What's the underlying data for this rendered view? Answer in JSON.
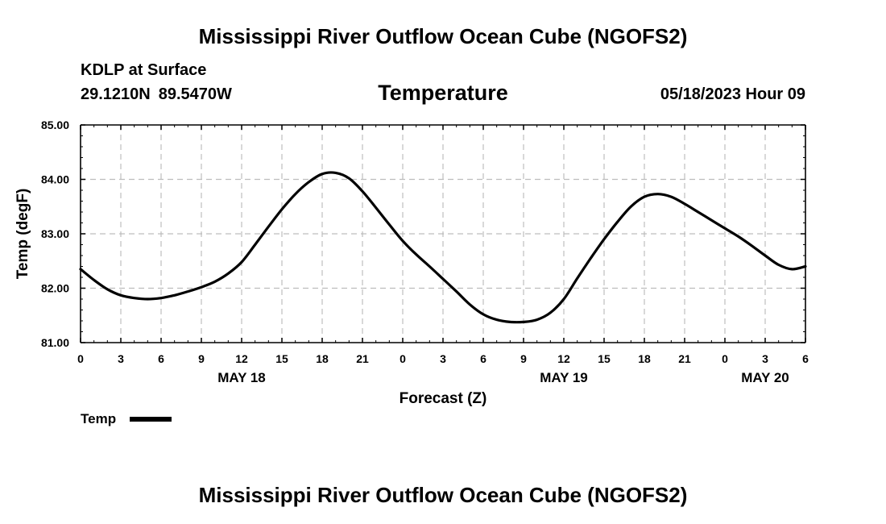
{
  "header": {
    "title": "Mississippi River Outflow Ocean Cube (NGOFS2)",
    "station": "KDLP at Surface",
    "lat": "29.1210N",
    "lon": "89.5470W",
    "variable": "Temperature",
    "valid_time": "05/18/2023 Hour 09"
  },
  "footer": {
    "title": "Mississippi River Outflow Ocean Cube (NGOFS2)"
  },
  "legend": {
    "label": "Temp",
    "line_color": "#000000"
  },
  "chart_data": {
    "type": "line",
    "title": "Temperature",
    "xlabel": "Forecast (Z)",
    "ylabel": "Temp (degF)",
    "x_unit": "hours from 00Z May 18",
    "xlim": [
      0,
      54
    ],
    "ylim": [
      81.0,
      85.0
    ],
    "y_ticks": [
      "81.00",
      "82.00",
      "83.00",
      "84.00",
      "85.00"
    ],
    "x_ticks": [
      {
        "hour": 0,
        "label": "0"
      },
      {
        "hour": 3,
        "label": "3"
      },
      {
        "hour": 6,
        "label": "6"
      },
      {
        "hour": 9,
        "label": "9"
      },
      {
        "hour": 12,
        "label": "12"
      },
      {
        "hour": 15,
        "label": "15"
      },
      {
        "hour": 18,
        "label": "18"
      },
      {
        "hour": 21,
        "label": "21"
      },
      {
        "hour": 24,
        "label": "0"
      },
      {
        "hour": 27,
        "label": "3"
      },
      {
        "hour": 30,
        "label": "6"
      },
      {
        "hour": 33,
        "label": "9"
      },
      {
        "hour": 36,
        "label": "12"
      },
      {
        "hour": 39,
        "label": "15"
      },
      {
        "hour": 42,
        "label": "18"
      },
      {
        "hour": 45,
        "label": "21"
      },
      {
        "hour": 48,
        "label": "0"
      },
      {
        "hour": 51,
        "label": "3"
      },
      {
        "hour": 54,
        "label": "6"
      }
    ],
    "date_labels": [
      {
        "hour": 12,
        "label": "MAY 18"
      },
      {
        "hour": 36,
        "label": "MAY 19"
      },
      {
        "hour": 51,
        "label": "MAY 20"
      }
    ],
    "grid": true,
    "series": [
      {
        "name": "Temp",
        "color": "#000000",
        "x": [
          0,
          1,
          2,
          3,
          4,
          5,
          6,
          7,
          8,
          9,
          10,
          11,
          12,
          13,
          14,
          15,
          16,
          17,
          18,
          19,
          20,
          21,
          22,
          23,
          24,
          25,
          26,
          27,
          28,
          29,
          30,
          31,
          32,
          33,
          34,
          35,
          36,
          37,
          38,
          39,
          40,
          41,
          42,
          43,
          44,
          45,
          46,
          47,
          48,
          49,
          50,
          51,
          52,
          53,
          54
        ],
        "values": [
          82.35,
          82.15,
          81.98,
          81.87,
          81.82,
          81.8,
          81.82,
          81.87,
          81.94,
          82.02,
          82.12,
          82.27,
          82.48,
          82.8,
          83.13,
          83.45,
          83.73,
          83.95,
          84.1,
          84.12,
          84.02,
          83.78,
          83.48,
          83.17,
          82.87,
          82.62,
          82.4,
          82.17,
          81.94,
          81.7,
          81.52,
          81.42,
          81.38,
          81.38,
          81.42,
          81.55,
          81.8,
          82.18,
          82.55,
          82.9,
          83.22,
          83.5,
          83.68,
          83.73,
          83.68,
          83.55,
          83.4,
          83.25,
          83.1,
          82.95,
          82.78,
          82.6,
          82.43,
          82.35,
          82.4
        ]
      }
    ]
  }
}
